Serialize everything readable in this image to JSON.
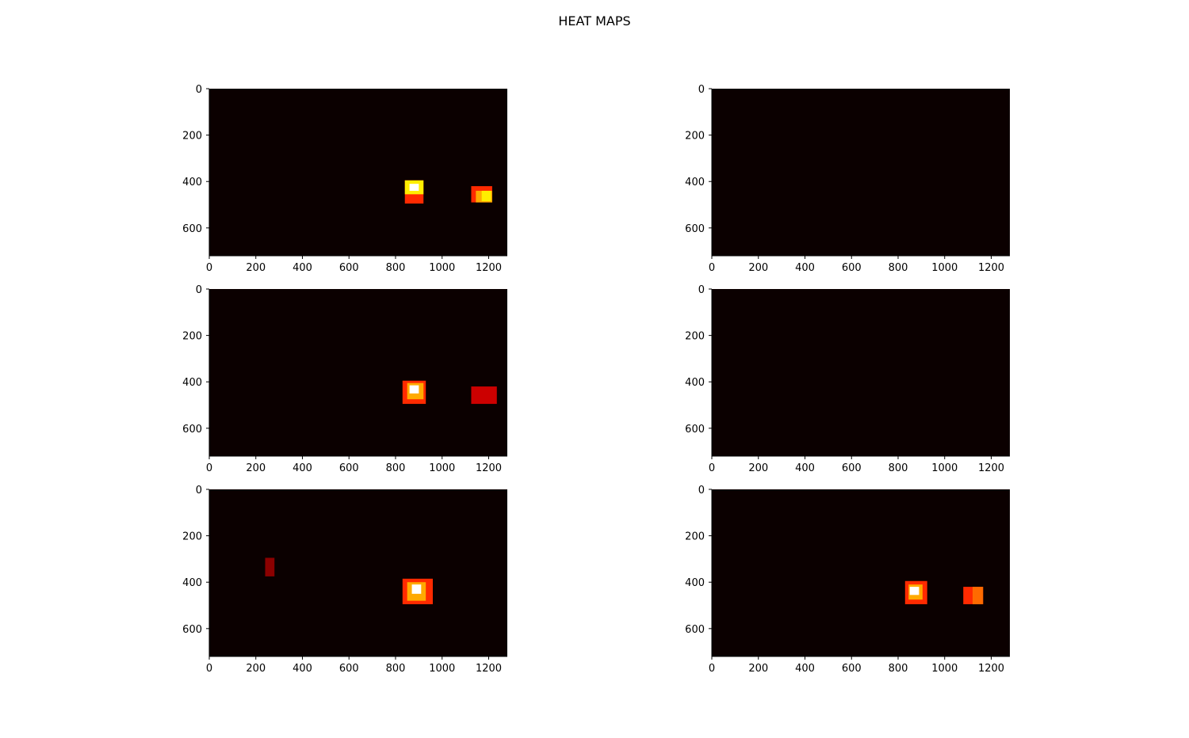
{
  "title": "HEAT MAPS",
  "colors": {
    "background": "#0b0000",
    "heat": [
      "#0b0000",
      "#8b0000",
      "#cc0000",
      "#ff2a00",
      "#ff6a00",
      "#ffaa00",
      "#ffee00",
      "#ffffff"
    ]
  },
  "chart_data": [
    {
      "type": "heatmap",
      "xlim": [
        0,
        1280
      ],
      "ylim": [
        720,
        0
      ],
      "xticks": [
        "0",
        "200",
        "400",
        "600",
        "800",
        "1000",
        "1200"
      ],
      "yticks": [
        "0",
        "200",
        "400",
        "600"
      ],
      "blobs": [
        {
          "x": 840,
          "y": 395,
          "w": 80,
          "h": 100,
          "level": 3
        },
        {
          "x": 840,
          "y": 395,
          "w": 80,
          "h": 60,
          "level": 6
        },
        {
          "x": 860,
          "y": 410,
          "w": 40,
          "h": 30,
          "level": 7
        },
        {
          "x": 1125,
          "y": 420,
          "w": 90,
          "h": 70,
          "level": 3
        },
        {
          "x": 1145,
          "y": 440,
          "w": 70,
          "h": 50,
          "level": 5
        },
        {
          "x": 1170,
          "y": 440,
          "w": 40,
          "h": 45,
          "level": 6
        }
      ]
    },
    {
      "type": "heatmap",
      "xlim": [
        0,
        1280
      ],
      "ylim": [
        720,
        0
      ],
      "xticks": [
        "0",
        "200",
        "400",
        "600",
        "800",
        "1000",
        "1200"
      ],
      "yticks": [
        "0",
        "200",
        "400",
        "600"
      ],
      "blobs": []
    },
    {
      "type": "heatmap",
      "xlim": [
        0,
        1280
      ],
      "ylim": [
        720,
        0
      ],
      "xticks": [
        "0",
        "200",
        "400",
        "600",
        "800",
        "1000",
        "1200"
      ],
      "yticks": [
        "0",
        "200",
        "400",
        "600"
      ],
      "blobs": [
        {
          "x": 830,
          "y": 395,
          "w": 100,
          "h": 100,
          "level": 3
        },
        {
          "x": 850,
          "y": 405,
          "w": 70,
          "h": 70,
          "level": 5
        },
        {
          "x": 860,
          "y": 415,
          "w": 40,
          "h": 35,
          "level": 7
        },
        {
          "x": 1125,
          "y": 420,
          "w": 110,
          "h": 75,
          "level": 2
        }
      ]
    },
    {
      "type": "heatmap",
      "xlim": [
        0,
        1280
      ],
      "ylim": [
        720,
        0
      ],
      "xticks": [
        "0",
        "200",
        "400",
        "600",
        "800",
        "1000",
        "1200"
      ],
      "yticks": [
        "0",
        "200",
        "400",
        "600"
      ],
      "blobs": []
    },
    {
      "type": "heatmap",
      "xlim": [
        0,
        1280
      ],
      "ylim": [
        720,
        0
      ],
      "xticks": [
        "0",
        "200",
        "400",
        "600",
        "800",
        "1000",
        "1200"
      ],
      "yticks": [
        "0",
        "200",
        "400",
        "600"
      ],
      "blobs": [
        {
          "x": 240,
          "y": 295,
          "w": 40,
          "h": 80,
          "level": 1
        },
        {
          "x": 830,
          "y": 385,
          "w": 130,
          "h": 110,
          "level": 3
        },
        {
          "x": 850,
          "y": 400,
          "w": 80,
          "h": 80,
          "level": 5
        },
        {
          "x": 870,
          "y": 410,
          "w": 40,
          "h": 40,
          "level": 7
        }
      ]
    },
    {
      "type": "heatmap",
      "xlim": [
        0,
        1280
      ],
      "ylim": [
        720,
        0
      ],
      "xticks": [
        "0",
        "200",
        "400",
        "600",
        "800",
        "1000",
        "1200"
      ],
      "yticks": [
        "0",
        "200",
        "400",
        "600"
      ],
      "blobs": [
        {
          "x": 830,
          "y": 395,
          "w": 95,
          "h": 100,
          "level": 3
        },
        {
          "x": 845,
          "y": 410,
          "w": 60,
          "h": 65,
          "level": 5
        },
        {
          "x": 850,
          "y": 420,
          "w": 40,
          "h": 35,
          "level": 7
        },
        {
          "x": 1080,
          "y": 420,
          "w": 85,
          "h": 75,
          "level": 3
        },
        {
          "x": 1120,
          "y": 420,
          "w": 45,
          "h": 75,
          "level": 4
        }
      ]
    }
  ]
}
